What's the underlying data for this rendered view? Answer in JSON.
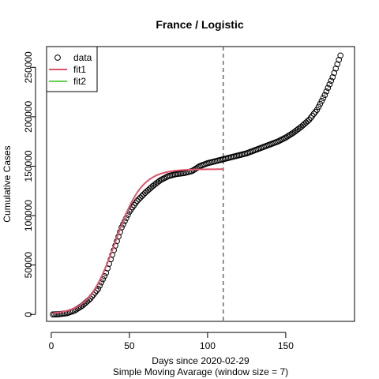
{
  "chart_data": {
    "type": "scatter",
    "title": "France / Logistic",
    "xlabel": "Days since 2020-02-29",
    "subtitle": "Simple Moving Avarage (window size = 7)",
    "ylabel": "Cumulative Cases",
    "xlim": [
      -3,
      194
    ],
    "ylim": [
      -7000,
      271000
    ],
    "xticks": [
      0,
      50,
      100,
      150
    ],
    "yticks": [
      0,
      50000,
      100000,
      150000,
      200000,
      250000
    ],
    "vline_x": 110,
    "legend": {
      "position": "top-left",
      "entries": [
        "data",
        "fit1",
        "fit2"
      ]
    },
    "colors": {
      "data": "#000000",
      "fit1": "#DF536B",
      "fit2": "#61D04F",
      "vline": "#555555"
    },
    "series": [
      {
        "name": "data",
        "type": "scatter",
        "anchors": [
          [
            1,
            0
          ],
          [
            5,
            200
          ],
          [
            10,
            1200
          ],
          [
            15,
            4000
          ],
          [
            20,
            9000
          ],
          [
            25,
            16000
          ],
          [
            30,
            26000
          ],
          [
            35,
            42000
          ],
          [
            40,
            65000
          ],
          [
            45,
            88000
          ],
          [
            50,
            104000
          ],
          [
            55,
            115000
          ],
          [
            60,
            123000
          ],
          [
            65,
            130000
          ],
          [
            70,
            136000
          ],
          [
            75,
            140000
          ],
          [
            80,
            142000
          ],
          [
            85,
            143000
          ],
          [
            90,
            145000
          ],
          [
            95,
            150000
          ],
          [
            100,
            153000
          ],
          [
            105,
            155000
          ],
          [
            110,
            157000
          ],
          [
            115,
            159000
          ],
          [
            120,
            161000
          ],
          [
            125,
            163000
          ],
          [
            130,
            166000
          ],
          [
            135,
            169000
          ],
          [
            140,
            172000
          ],
          [
            145,
            175000
          ],
          [
            150,
            179000
          ],
          [
            155,
            184000
          ],
          [
            160,
            190000
          ],
          [
            165,
            197000
          ],
          [
            170,
            207000
          ],
          [
            175,
            222000
          ],
          [
            180,
            240000
          ],
          [
            185,
            262000
          ]
        ]
      },
      {
        "name": "fit1",
        "type": "line",
        "model": {
          "K": 147000,
          "r": 0.118,
          "t0": 41,
          "base": 0,
          "x_start": 1,
          "x_end": 110
        }
      },
      {
        "name": "fit2",
        "type": "line",
        "points": []
      }
    ]
  }
}
